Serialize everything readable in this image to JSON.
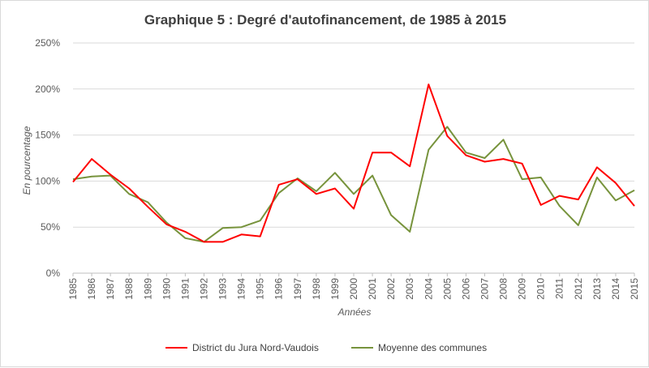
{
  "chart_data": {
    "type": "line",
    "title": "Graphique 5 : Degré d'autofinancement, de 1985 à 2015",
    "xlabel": "Années",
    "ylabel": "En pourcentage",
    "ylim": [
      0,
      250
    ],
    "y_ticks": [
      "0%",
      "50%",
      "100%",
      "150%",
      "200%",
      "250%"
    ],
    "grid": "horizontal",
    "legend_position": "bottom",
    "categories": [
      "1985",
      "1986",
      "1987",
      "1988",
      "1989",
      "1990",
      "1991",
      "1992",
      "1993",
      "1994",
      "1995",
      "1996",
      "1997",
      "1998",
      "1999",
      "2000",
      "2001",
      "2002",
      "2003",
      "2004",
      "2005",
      "2006",
      "2007",
      "2008",
      "2009",
      "2010",
      "2011",
      "2012",
      "2013",
      "2014",
      "2015"
    ],
    "series": [
      {
        "name": "District du Jura Nord-Vaudois",
        "color": "#ff0000",
        "values": [
          99,
          124,
          107,
          92,
          72,
          53,
          45,
          34,
          34,
          42,
          40,
          96,
          102,
          86,
          92,
          70,
          131,
          131,
          116,
          205,
          149,
          128,
          121,
          124,
          119,
          74,
          84,
          80,
          115,
          98,
          73
        ]
      },
      {
        "name": "Moyenne des communes",
        "color": "#77933c",
        "values": [
          102,
          105,
          106,
          86,
          77,
          55,
          38,
          34,
          49,
          50,
          57,
          87,
          103,
          89,
          109,
          86,
          106,
          63,
          45,
          134,
          159,
          131,
          125,
          145,
          102,
          104,
          73,
          52,
          104,
          79,
          90
        ]
      }
    ]
  }
}
